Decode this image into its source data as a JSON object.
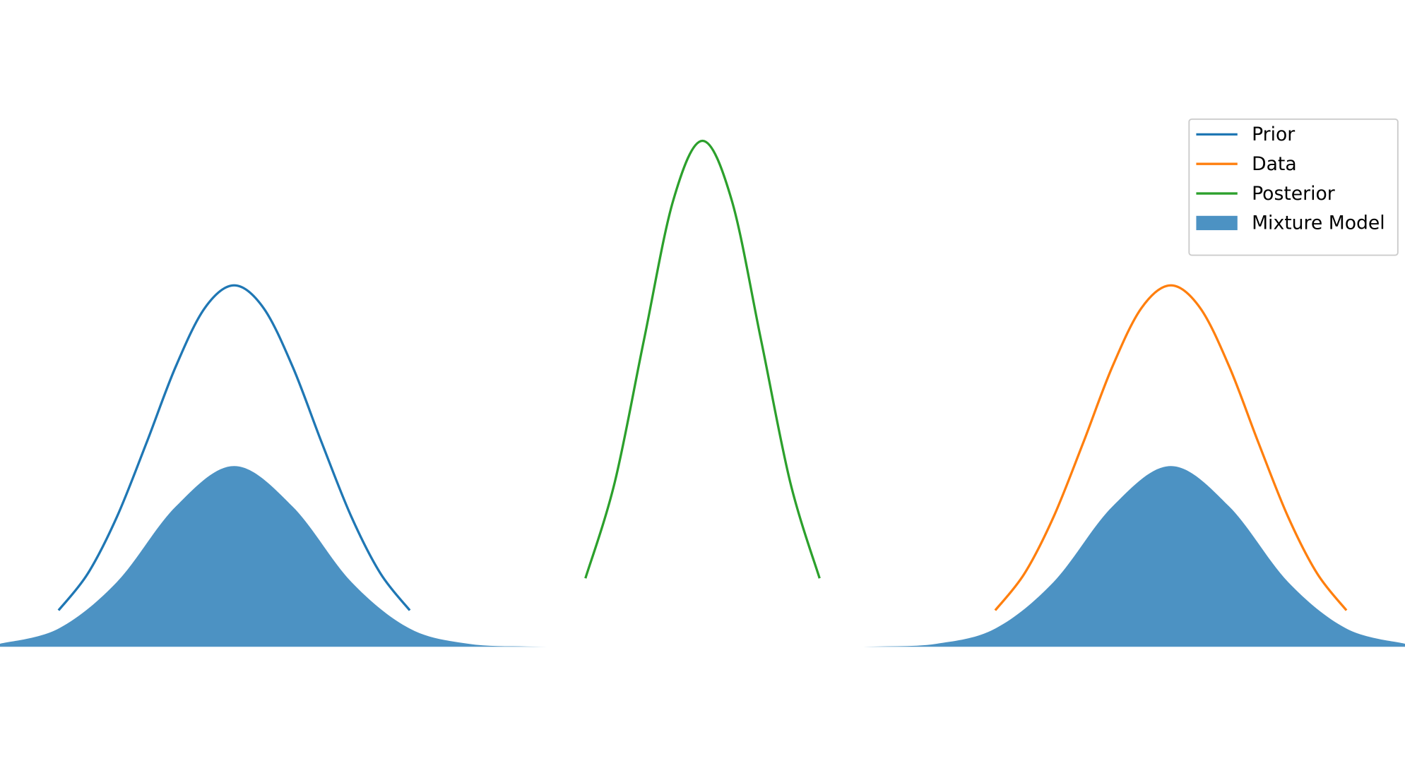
{
  "chart_data": {
    "type": "line",
    "xlim": [
      -3,
      3
    ],
    "ylim": [
      -0.42,
      2.04
    ],
    "legend": "upper right",
    "series": [
      {
        "name": "Prior",
        "color": "#1f77b4",
        "x": [
          -2.75,
          -2.625,
          -2.5,
          -2.375,
          -2.25,
          -2.125,
          -2,
          -1.875,
          -1.75,
          -1.625,
          -1.5,
          -1.375,
          -1.25
        ],
        "values": [
          0.115,
          0.231,
          0.411,
          0.642,
          0.883,
          1.069,
          1.14,
          1.069,
          0.883,
          0.642,
          0.411,
          0.231,
          0.115
        ]
      },
      {
        "name": "Data",
        "color": "#ff7f0e",
        "x": [
          1.25,
          1.375,
          1.5,
          1.625,
          1.75,
          1.875,
          2,
          2.125,
          2.25,
          2.375,
          2.5,
          2.625,
          2.75
        ],
        "values": [
          0.115,
          0.231,
          0.411,
          0.642,
          0.883,
          1.069,
          1.14,
          1.069,
          0.883,
          0.642,
          0.411,
          0.231,
          0.115
        ]
      },
      {
        "name": "Posterior",
        "color": "#2ca02c",
        "x": [
          -0.5,
          -0.375,
          -0.25,
          -0.125,
          0,
          0.125,
          0.25,
          0.375,
          0.5
        ],
        "values": [
          0.216,
          0.518,
          0.968,
          1.408,
          1.596,
          1.408,
          0.968,
          0.518,
          0.216
        ]
      },
      {
        "name": "Mixture Model",
        "color": "#1f77b4",
        "fill": true,
        "alpha": 0.8,
        "x": [
          -3,
          -2.75,
          -2.5,
          -2.25,
          -2,
          -1.75,
          -1.5,
          -1.25,
          -1,
          -0.75,
          -0.5,
          -0.25,
          0,
          0.25,
          0.5,
          0.75,
          1,
          1.25,
          1.5,
          1.75,
          2,
          2.25,
          2.5,
          2.75,
          3
        ],
        "values": [
          0.0096,
          0.0574,
          0.205,
          0.442,
          0.57,
          0.442,
          0.205,
          0.0574,
          0.0096,
          0.001,
          0.0001,
          0,
          0,
          0,
          0.0001,
          0.001,
          0.0096,
          0.0574,
          0.205,
          0.442,
          0.57,
          0.442,
          0.205,
          0.0574,
          0.0096
        ]
      }
    ]
  }
}
